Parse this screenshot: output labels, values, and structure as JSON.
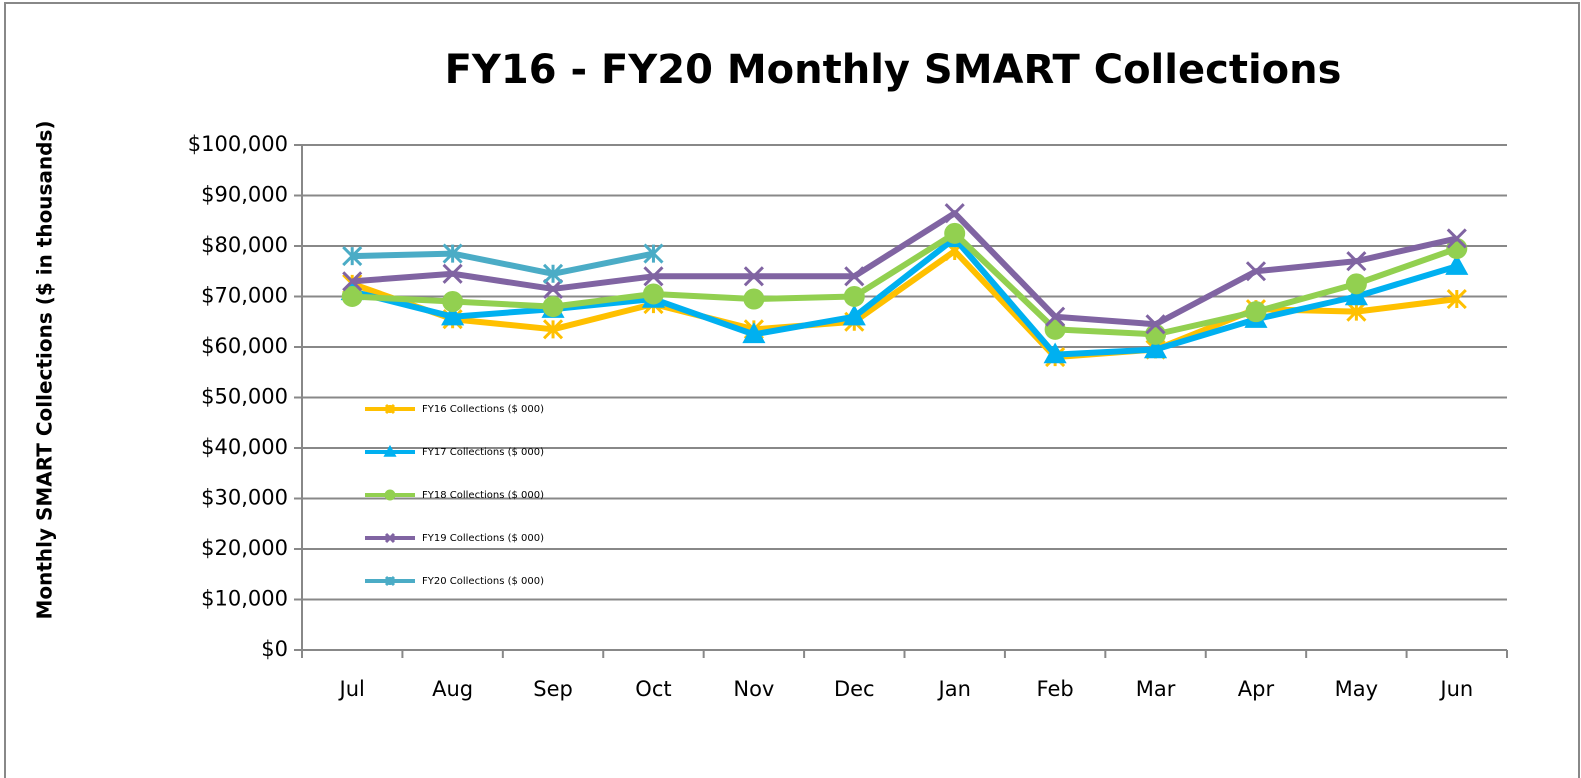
{
  "chart_data": {
    "type": "line",
    "title": "FY16 - FY20 Monthly SMART Collections",
    "y_label": "Monthly SMART Collections ($ in thousands)",
    "categories": [
      "Jul",
      "Aug",
      "Sep",
      "Oct",
      "Nov",
      "Dec",
      "Jan",
      "Feb",
      "Mar",
      "Apr",
      "May",
      "Jun"
    ],
    "series": [
      {
        "name": "FY16 Collections ($ 000)",
        "color": "#FFC000",
        "marker": "star",
        "values": [
          72500,
          65500,
          63500,
          68500,
          63500,
          65000,
          79000,
          58000,
          59500,
          67500,
          67000,
          69500
        ]
      },
      {
        "name": "FY17 Collections ($ 000)",
        "color": "#00B0F0",
        "marker": "triangle",
        "values": [
          71000,
          66000,
          67500,
          69500,
          62500,
          66000,
          81500,
          58500,
          59500,
          65500,
          70000,
          76000
        ]
      },
      {
        "name": "FY18 Collections ($ 000)",
        "color": "#92D050",
        "marker": "circle",
        "values": [
          70000,
          69000,
          68000,
          70500,
          69500,
          70000,
          82500,
          63500,
          62500,
          67000,
          72500,
          79500
        ]
      },
      {
        "name": "FY19 Collections ($ 000)",
        "color": "#8064A2",
        "marker": "x",
        "values": [
          73000,
          74500,
          71500,
          74000,
          74000,
          74000,
          86500,
          66000,
          64500,
          75000,
          77000,
          81500
        ]
      },
      {
        "name": "FY20 Collections ($ 000)",
        "color": "#4BACC6",
        "marker": "star",
        "values": [
          78000,
          78500,
          74500,
          78500,
          null,
          null,
          null,
          null,
          null,
          null,
          null,
          null
        ]
      }
    ],
    "ylim": [
      0,
      100000
    ],
    "yticks": [
      {
        "value": 0,
        "label": "$0"
      },
      {
        "value": 10000,
        "label": "$10,000"
      },
      {
        "value": 20000,
        "label": "$20,000"
      },
      {
        "value": 30000,
        "label": "$30,000"
      },
      {
        "value": 40000,
        "label": "$40,000"
      },
      {
        "value": 50000,
        "label": "$50,000"
      },
      {
        "value": 60000,
        "label": "$60,000"
      },
      {
        "value": 70000,
        "label": "$70,000"
      },
      {
        "value": 80000,
        "label": "$80,000"
      },
      {
        "value": 90000,
        "label": "$90,000"
      },
      {
        "value": 100000,
        "label": "$100,000"
      }
    ],
    "grid": true,
    "legend": "left"
  }
}
